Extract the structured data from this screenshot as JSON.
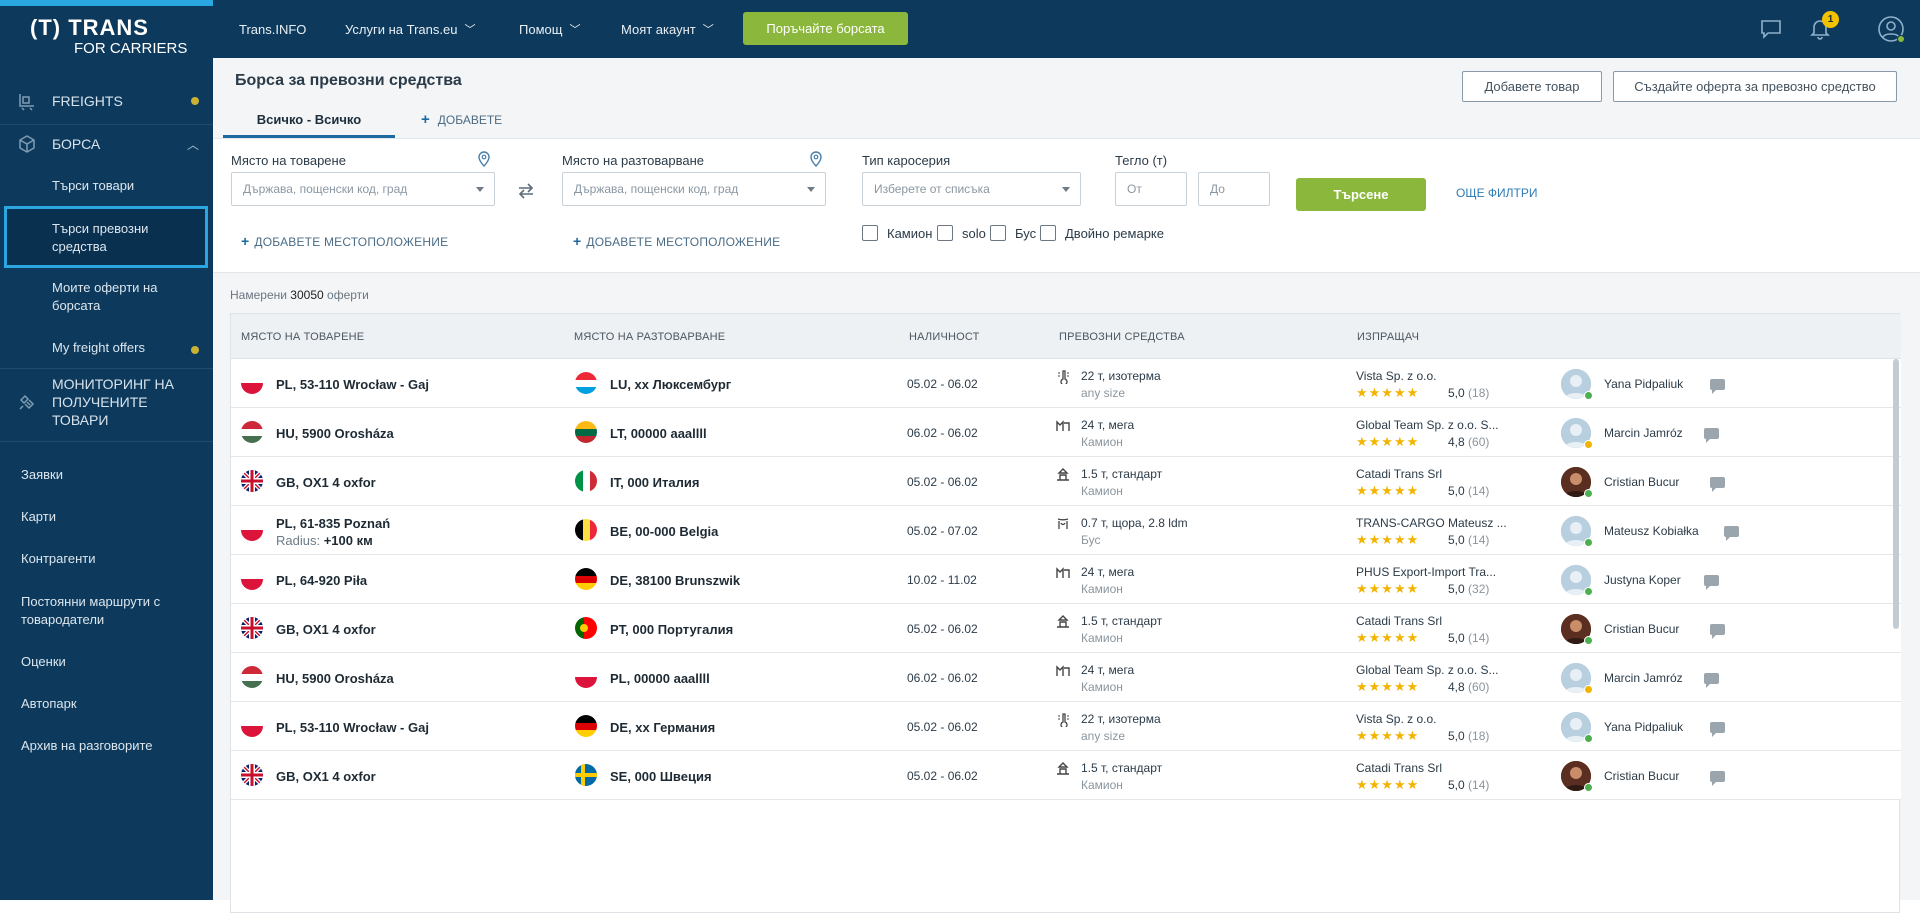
{
  "sidebar": {
    "logo": {
      "line1": "(T) TRANS",
      "line2": "FOR CARRIERS"
    },
    "main_items": [
      {
        "label": "FREIGHTS"
      },
      {
        "label": "БОРСА"
      },
      {
        "label": "МОНИТОРИНГ НА ПОЛУЧЕНИТЕ ТОВАРИ"
      }
    ],
    "sub_items": [
      {
        "label": "Търси товари"
      },
      {
        "label": "Търси превозни средства"
      },
      {
        "label": "Моите оферти на борсата"
      },
      {
        "label": "My freight offers"
      }
    ],
    "bottom_items": [
      {
        "label": "Заявки"
      },
      {
        "label": "Карти"
      },
      {
        "label": "Контрагенти"
      },
      {
        "label": "Постоянни маршрути с товародатели"
      },
      {
        "label": "Оценки"
      },
      {
        "label": "Автопарк"
      },
      {
        "label": "Архив на разговорите"
      }
    ]
  },
  "header": {
    "nav": [
      "Trans.INFO",
      "Услуги на Trans.eu",
      "Помощ",
      "Моят акаунт"
    ],
    "cta": "Поръчайте борсата",
    "notifications_count": "1"
  },
  "page": {
    "title": "Борса за превозни средства",
    "add_goods_button": "Добавете товар",
    "create_offer_button": "Създайте оферта за превозно средство",
    "tabs": {
      "all": "Всичко - Всичко",
      "add": "ДОБАВЕТЕ"
    }
  },
  "filters": {
    "loading_label": "Място на товарене",
    "loading_placeholder": "Държава, пощенски код, град",
    "unloading_label": "Място на разтоварване",
    "unloading_placeholder": "Държава, пощенски код, град",
    "add_location": "ДОБАВЕТЕ МЕСТОПОЛОЖЕНИЕ",
    "body_type_label": "Тип каросерия",
    "body_type_placeholder": "Изберете от списъка",
    "weight_label": "Тегло (т)",
    "weight_from": "От",
    "weight_to": "До",
    "search_button": "Търсене",
    "more_filters": "ОЩЕ ФИЛТРИ",
    "checkboxes": [
      "Камион",
      "solo",
      "Бус",
      "Двойно ремарке"
    ]
  },
  "results": {
    "found_prefix": "Намерени",
    "found_count": "30050",
    "found_suffix": "оферти",
    "columns": [
      "МЯСТО НА ТОВАРЕНЕ",
      "МЯСТО НА РАЗТОВАРВАНЕ",
      "НАЛИЧНОСТ",
      "ПРЕВОЗНИ СРЕДСТВА",
      "ИЗПРАЩАЧ"
    ],
    "rows": [
      {
        "from_flag": "PL",
        "from": "PL, 53-110 Wrocław - Gaj",
        "to_flag": "LU",
        "to": "LU, xx Люксембург",
        "dates": "05.02 - 06.02",
        "veh_icon": "thermometer-icon",
        "vehicle": "22 т, изотерма",
        "vehicle_sub": "any size",
        "sender": "Vista Sp. z o.o.",
        "rating": "5,0",
        "reviews": "(18)",
        "person": "Yana Pidpaliuk",
        "status": "#4caf50",
        "photo": false
      },
      {
        "from_flag": "HU",
        "from": "HU, 5900 Orosháza",
        "to_flag": "LT",
        "to": "LT, 00000 aaallll",
        "dates": "06.02 - 06.02",
        "veh_icon": "mega-trailer-icon",
        "vehicle": "24 т, мега",
        "vehicle_sub": "Камион",
        "sender": "Global Team Sp. z o.o. S...",
        "rating": "4,8",
        "reviews": "(60)",
        "person": "Marcin Jamróz",
        "status": "#f2b400",
        "photo": false
      },
      {
        "from_flag": "GB",
        "from": "GB, OX1 4 oxfor",
        "to_flag": "IT",
        "to": "IT, 000 Италия",
        "dates": "05.02 - 06.02",
        "veh_icon": "standard-trailer-icon",
        "vehicle": "1.5 т, стандарт",
        "vehicle_sub": "Камион",
        "sender": "Catadi Trans Srl",
        "rating": "5,0",
        "reviews": "(14)",
        "person": "Cristian Bucur",
        "status": "#4caf50",
        "photo": true
      },
      {
        "from_flag": "PL",
        "from": "PL, 61-835 Poznań",
        "radius_label": "Radius:",
        "radius": "+100 км",
        "to_flag": "BE",
        "to": "BE, 00-000 Belgia",
        "dates": "05.02 - 07.02",
        "veh_icon": "curtain-icon",
        "vehicle": "0.7 т, щора, 2.8 ldm",
        "vehicle_sub": "Бус",
        "sender": "TRANS-CARGO Mateusz ...",
        "rating": "5,0",
        "reviews": "(14)",
        "person": "Mateusz Kobiałka",
        "status": "#4caf50",
        "photo": false
      },
      {
        "from_flag": "PL",
        "from": "PL, 64-920 Piła",
        "to_flag": "DE",
        "to": "DE, 38100 Brunszwik",
        "dates": "10.02 - 11.02",
        "veh_icon": "mega-trailer-icon",
        "vehicle": "24 т, мега",
        "vehicle_sub": "Камион",
        "sender": "PHUS Export-Import Tra...",
        "rating": "5,0",
        "reviews": "(32)",
        "person": "Justyna Koper",
        "status": "#4caf50",
        "photo": false
      },
      {
        "from_flag": "GB",
        "from": "GB, OX1 4 oxfor",
        "to_flag": "PT",
        "to": "PT, 000 Португалия",
        "dates": "05.02 - 06.02",
        "veh_icon": "standard-trailer-icon",
        "vehicle": "1.5 т, стандарт",
        "vehicle_sub": "Камион",
        "sender": "Catadi Trans Srl",
        "rating": "5,0",
        "reviews": "(14)",
        "person": "Cristian Bucur",
        "status": "#4caf50",
        "photo": true
      },
      {
        "from_flag": "HU",
        "from": "HU, 5900 Orosháza",
        "to_flag": "PL",
        "to": "PL, 00000 aaallll",
        "dates": "06.02 - 06.02",
        "veh_icon": "mega-trailer-icon",
        "vehicle": "24 т, мега",
        "vehicle_sub": "Камион",
        "sender": "Global Team Sp. z o.o. S...",
        "rating": "4,8",
        "reviews": "(60)",
        "person": "Marcin Jamróz",
        "status": "#f2b400",
        "photo": false
      },
      {
        "from_flag": "PL",
        "from": "PL, 53-110 Wrocław - Gaj",
        "to_flag": "DE",
        "to": "DE, xx Германия",
        "dates": "05.02 - 06.02",
        "veh_icon": "thermometer-icon",
        "vehicle": "22 т, изотерма",
        "vehicle_sub": "any size",
        "sender": "Vista Sp. z o.o.",
        "rating": "5,0",
        "reviews": "(18)",
        "person": "Yana Pidpaliuk",
        "status": "#4caf50",
        "photo": false
      },
      {
        "from_flag": "GB",
        "from": "GB, OX1 4 oxfor",
        "to_flag": "SE",
        "to": "SE, 000 Швеция",
        "dates": "05.02 - 06.02",
        "veh_icon": "standard-trailer-icon",
        "vehicle": "1.5 т, стандарт",
        "vehicle_sub": "Камион",
        "sender": "Catadi Trans Srl",
        "rating": "5,0",
        "reviews": "(14)",
        "person": "Cristian Bucur",
        "status": "#4caf50",
        "photo": true
      }
    ]
  }
}
